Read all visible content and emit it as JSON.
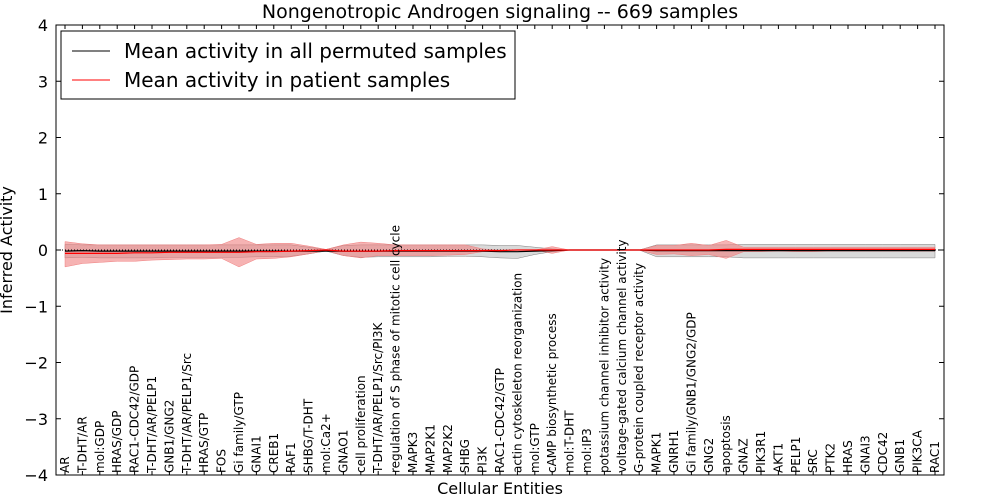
{
  "chart_data": {
    "type": "line",
    "title": "Nongenotropic Androgen signaling -- 669 samples",
    "xlabel": "Cellular Entities",
    "ylabel": "Inferred Activity",
    "ylim": [
      -4,
      4
    ],
    "yticks": [
      "−4",
      "−3",
      "−2",
      "−1",
      "0",
      "1",
      "2",
      "3",
      "4"
    ],
    "grid": false,
    "legend_position": "top-left",
    "categories": [
      "AR",
      "T-DHT/AR",
      "mol:GDP",
      "HRAS/GDP",
      "RAC1-CDC42/GDP",
      "T-DHT/AR/PELP1",
      "GNB1/GNG2",
      "T-DHT/AR/PELP1/Src",
      "HRAS/GTP",
      "FOS",
      "Gi family/GTP",
      "GNAI1",
      "CREB1",
      "RAF1",
      "SHBG/T-DHT",
      "mol:Ca2+",
      "GNAO1",
      "cell proliferation",
      "T-DHT/AR/PELP1/Src/PI3K",
      "regulation of S phase of mitotic cell cycle",
      "MAPK3",
      "MAP2K1",
      "MAP2K2",
      "SHBG",
      "PI3K",
      "RAC1-CDC42/GTP",
      "actin cytoskeleton reorganization",
      "mol:GTP",
      "cAMP biosynthetic process",
      "mol:T-DHT",
      "mol:IP3",
      "potassium channel inhibitor activity",
      "voltage-gated calcium channel activity",
      "G-protein coupled receptor activity",
      "MAPK1",
      "GNRH1",
      "Gi family/GNB1/GNG2/GDP",
      "GNG2",
      "apoptosis",
      "GNAZ",
      "PIK3R1",
      "AKT1",
      "PELP1",
      "SRC",
      "PTK2",
      "HRAS",
      "GNAI3",
      "CDC42",
      "GNB1",
      "PIK3CA",
      "RAC1"
    ],
    "series": [
      {
        "name": "Mean activity in all permuted samples",
        "color": "#000000",
        "band_color": "#808080",
        "values": [
          -0.02,
          -0.01,
          -0.02,
          -0.02,
          -0.02,
          -0.02,
          -0.02,
          -0.02,
          -0.02,
          -0.02,
          -0.02,
          -0.02,
          -0.02,
          -0.02,
          -0.02,
          -0.02,
          -0.02,
          -0.02,
          -0.02,
          -0.02,
          -0.02,
          -0.02,
          -0.02,
          -0.02,
          -0.02,
          -0.03,
          -0.03,
          -0.02,
          -0.01,
          0.0,
          0.0,
          0.0,
          0.0,
          0.0,
          -0.01,
          -0.01,
          -0.01,
          -0.01,
          -0.01,
          -0.01,
          -0.01,
          -0.01,
          -0.01,
          -0.01,
          -0.01,
          -0.01,
          -0.01,
          -0.01,
          -0.01,
          -0.01,
          -0.01
        ],
        "lower": [
          -0.14,
          -0.13,
          -0.14,
          -0.14,
          -0.14,
          -0.14,
          -0.13,
          -0.13,
          -0.13,
          -0.13,
          -0.13,
          -0.12,
          -0.12,
          -0.11,
          -0.07,
          -0.02,
          -0.1,
          -0.13,
          -0.12,
          -0.12,
          -0.12,
          -0.12,
          -0.11,
          -0.11,
          -0.12,
          -0.14,
          -0.15,
          -0.08,
          -0.03,
          0.0,
          0.0,
          0.0,
          0.0,
          0.0,
          -0.12,
          -0.12,
          -0.12,
          -0.12,
          -0.12,
          -0.14,
          -0.14,
          -0.14,
          -0.14,
          -0.14,
          -0.14,
          -0.14,
          -0.14,
          -0.14,
          -0.14,
          -0.14,
          -0.14
        ],
        "upper": [
          0.1,
          0.09,
          0.09,
          0.09,
          0.09,
          0.09,
          0.09,
          0.09,
          0.09,
          0.09,
          0.09,
          0.09,
          0.09,
          0.09,
          0.05,
          0.01,
          0.08,
          0.09,
          0.09,
          0.09,
          0.09,
          0.09,
          0.09,
          0.09,
          0.09,
          0.08,
          0.08,
          0.05,
          0.02,
          0.0,
          0.0,
          0.0,
          0.0,
          0.0,
          0.09,
          0.09,
          0.09,
          0.09,
          0.09,
          0.1,
          0.1,
          0.1,
          0.1,
          0.1,
          0.1,
          0.1,
          0.1,
          0.1,
          0.1,
          0.1,
          0.1
        ]
      },
      {
        "name": "Mean activity in patient samples",
        "color": "#ff0000",
        "band_color": "#f08080",
        "values": [
          -0.06,
          -0.06,
          -0.06,
          -0.06,
          -0.05,
          -0.05,
          -0.04,
          -0.04,
          -0.04,
          -0.04,
          -0.04,
          -0.03,
          -0.03,
          -0.02,
          -0.01,
          0.0,
          -0.02,
          -0.02,
          -0.02,
          -0.01,
          -0.01,
          -0.01,
          -0.01,
          -0.01,
          -0.01,
          -0.01,
          0.0,
          0.0,
          0.0,
          0.0,
          0.0,
          0.0,
          0.0,
          0.0,
          0.0,
          0.0,
          0.0,
          0.0,
          0.01,
          0.01,
          0.01,
          0.01,
          0.01,
          0.01,
          0.01,
          0.01,
          0.01,
          0.01,
          0.01,
          0.01,
          0.01
        ],
        "lower": [
          -0.3,
          -0.24,
          -0.22,
          -0.2,
          -0.2,
          -0.18,
          -0.17,
          -0.16,
          -0.16,
          -0.15,
          -0.3,
          -0.16,
          -0.15,
          -0.12,
          -0.07,
          -0.01,
          -0.1,
          -0.14,
          -0.1,
          -0.1,
          -0.1,
          -0.1,
          -0.09,
          -0.08,
          -0.03,
          0.0,
          0.0,
          0.0,
          -0.06,
          0.0,
          0.0,
          0.0,
          0.0,
          0.0,
          -0.08,
          -0.07,
          -0.1,
          -0.08,
          -0.15,
          -0.03,
          -0.03,
          -0.02,
          -0.03,
          -0.03,
          -0.02,
          -0.02,
          -0.02,
          -0.02,
          -0.02,
          -0.02,
          -0.02
        ],
        "upper": [
          0.15,
          0.11,
          0.09,
          0.09,
          0.09,
          0.09,
          0.09,
          0.09,
          0.09,
          0.1,
          0.22,
          0.1,
          0.12,
          0.12,
          0.07,
          0.01,
          0.09,
          0.14,
          0.12,
          0.09,
          0.09,
          0.09,
          0.09,
          0.09,
          0.02,
          0.0,
          0.0,
          0.0,
          0.06,
          0.0,
          0.0,
          0.0,
          0.0,
          0.0,
          0.08,
          0.08,
          0.12,
          0.08,
          0.17,
          0.05,
          0.05,
          0.05,
          0.05,
          0.05,
          0.05,
          0.05,
          0.05,
          0.05,
          0.05,
          0.05,
          0.05
        ]
      }
    ],
    "reference_line": {
      "y": 0,
      "style": "dotted"
    }
  }
}
